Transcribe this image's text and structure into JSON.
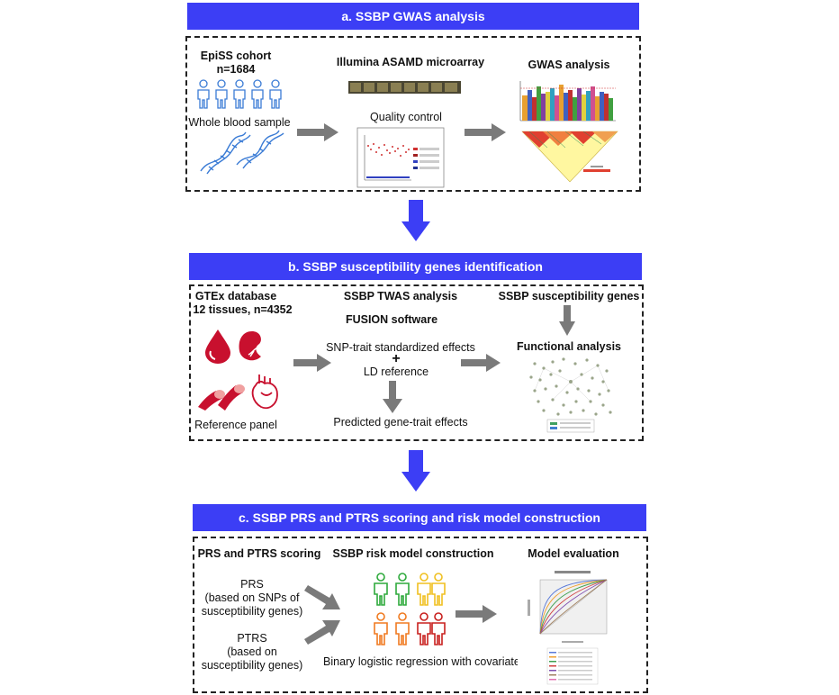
{
  "section_a": {
    "title": "a. SSBP GWAS analysis",
    "cohort_title": "EpiSS cohort",
    "cohort_n": "n=1684",
    "sample": "Whole blood sample",
    "microarray": "Illumina ASAMD microarray",
    "qc": "Quality control",
    "gwas": "GWAS analysis"
  },
  "section_b": {
    "title": "b. SSBP susceptibility genes identification",
    "gtex_title": "GTEx database",
    "gtex_sub": "12 tissues, n=4352",
    "reference_panel": "Reference panel",
    "twas": "SSBP TWAS analysis",
    "fusion": "FUSION software",
    "snp_effects": "SNP-trait standardized effects",
    "plus": "+",
    "ld_ref": "LD reference",
    "predicted": "Predicted gene-trait effects",
    "genes": "SSBP susceptibility genes",
    "functional": "Functional analysis"
  },
  "section_c": {
    "title": "c. SSBP PRS and PTRS scoring and risk model construction",
    "scoring": "PRS and PTRS scoring",
    "risk_model": "SSBP risk model construction",
    "evaluation": "Model evaluation",
    "prs_lines": [
      "PRS",
      "(based on SNPs of",
      "susceptibility genes)"
    ],
    "ptrs_lines": [
      "PTRS",
      "(based on",
      "susceptibility genes)"
    ],
    "regression": "Binary logistic regression with covariates"
  },
  "colors": {
    "banner": "#3c3ef5",
    "flow_arrow": "#3c3ef5",
    "gray_arrow": "#7a7a7a",
    "people_a": "#3a7bd5",
    "tissue_red": "#c8102e",
    "people_green": "#2eaa3c",
    "people_yellow": "#f0c020",
    "people_orange": "#f07a20",
    "people_red": "#c8201e"
  },
  "icons": [
    "person-icon",
    "dna-icon",
    "microarray-icon",
    "qc-plot-icon",
    "manhattan-plot-icon",
    "ld-heatmap-icon",
    "blood-drop-icon",
    "kidney-icon",
    "artery-icon",
    "heart-icon",
    "network-icon",
    "roc-plot-icon"
  ]
}
